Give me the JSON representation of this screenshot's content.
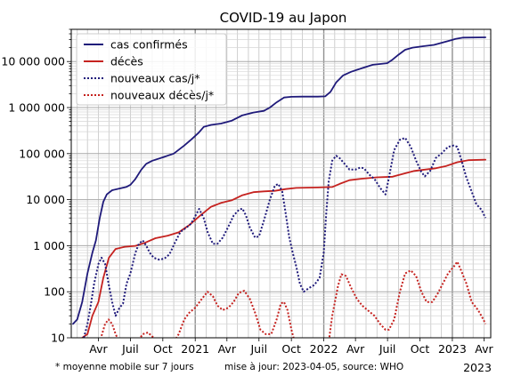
{
  "chart_data": {
    "type": "line",
    "title": "COVID-19 au Japon",
    "y_scale": "log",
    "ylim": [
      10,
      50000000
    ],
    "xlim": [
      "2020-01-15",
      "2023-04-20"
    ],
    "grid": true,
    "legend_position": "top-left",
    "y_ticks": [
      {
        "value": 10,
        "label": "10"
      },
      {
        "value": 100,
        "label": "100"
      },
      {
        "value": 1000,
        "label": "1 000"
      },
      {
        "value": 10000,
        "label": "10 000"
      },
      {
        "value": 100000,
        "label": "100 000"
      },
      {
        "value": 1000000,
        "label": "1 000 000"
      },
      {
        "value": 10000000,
        "label": "10 000 000"
      }
    ],
    "x_ticks": [
      {
        "date": "2020-04-01",
        "label": "Avr"
      },
      {
        "date": "2020-07-01",
        "label": "Juil"
      },
      {
        "date": "2020-10-01",
        "label": "Oct"
      },
      {
        "date": "2021-01-01",
        "label": "2021"
      },
      {
        "date": "2021-04-01",
        "label": "Avr"
      },
      {
        "date": "2021-07-01",
        "label": "Juil"
      },
      {
        "date": "2021-10-01",
        "label": "Oct"
      },
      {
        "date": "2022-01-01",
        "label": "2022"
      },
      {
        "date": "2022-04-01",
        "label": "Avr"
      },
      {
        "date": "2022-07-01",
        "label": "Juil"
      },
      {
        "date": "2022-10-01",
        "label": "Oct"
      },
      {
        "date": "2023-01-01",
        "label": "2023"
      },
      {
        "date": "2023-04-01",
        "label": "Avr"
      }
    ],
    "x_extra_label": "2023",
    "footnote_left": "* moyenne mobile sur 7 jours",
    "footnote_right": "mise à jour: 2023-04-05, source: WHO",
    "series": [
      {
        "name": "cas confirmés",
        "color": "#1f1a7a",
        "style": "solid",
        "points": [
          [
            "2020-01-20",
            20
          ],
          [
            "2020-02-01",
            25
          ],
          [
            "2020-02-15",
            60
          ],
          [
            "2020-03-01",
            250
          ],
          [
            "2020-03-15",
            700
          ],
          [
            "2020-03-25",
            1300
          ],
          [
            "2020-04-05",
            4000
          ],
          [
            "2020-04-15",
            9000
          ],
          [
            "2020-04-25",
            13000
          ],
          [
            "2020-05-10",
            16000
          ],
          [
            "2020-06-01",
            17500
          ],
          [
            "2020-06-20",
            19000
          ],
          [
            "2020-07-01",
            21000
          ],
          [
            "2020-07-15",
            28000
          ],
          [
            "2020-08-01",
            45000
          ],
          [
            "2020-08-15",
            60000
          ],
          [
            "2020-09-01",
            70000
          ],
          [
            "2020-10-01",
            83000
          ],
          [
            "2020-11-01",
            100000
          ],
          [
            "2020-12-01",
            150000
          ],
          [
            "2020-12-20",
            200000
          ],
          [
            "2021-01-10",
            280000
          ],
          [
            "2021-01-25",
            380000
          ],
          [
            "2021-02-15",
            420000
          ],
          [
            "2021-03-15",
            450000
          ],
          [
            "2021-04-15",
            520000
          ],
          [
            "2021-05-15",
            680000
          ],
          [
            "2021-06-15",
            780000
          ],
          [
            "2021-07-15",
            850000
          ],
          [
            "2021-08-01",
            1000000
          ],
          [
            "2021-08-20",
            1300000
          ],
          [
            "2021-09-10",
            1650000
          ],
          [
            "2021-10-01",
            1710000
          ],
          [
            "2021-11-01",
            1725000
          ],
          [
            "2021-12-15",
            1730000
          ],
          [
            "2022-01-05",
            1750000
          ],
          [
            "2022-01-20",
            2200000
          ],
          [
            "2022-02-05",
            3500000
          ],
          [
            "2022-02-25",
            5000000
          ],
          [
            "2022-03-20",
            6000000
          ],
          [
            "2022-04-20",
            7200000
          ],
          [
            "2022-05-20",
            8500000
          ],
          [
            "2022-06-30",
            9200000
          ],
          [
            "2022-07-15",
            11000000
          ],
          [
            "2022-08-01",
            14000000
          ],
          [
            "2022-08-20",
            18000000
          ],
          [
            "2022-09-10",
            20000000
          ],
          [
            "2022-10-10",
            21500000
          ],
          [
            "2022-11-10",
            23000000
          ],
          [
            "2022-12-10",
            26500000
          ],
          [
            "2023-01-10",
            31000000
          ],
          [
            "2023-02-01",
            33000000
          ],
          [
            "2023-04-05",
            33500000
          ]
        ]
      },
      {
        "name": "décès",
        "color": "#c5221f",
        "style": "solid",
        "points": [
          [
            "2020-02-15",
            10
          ],
          [
            "2020-03-01",
            12
          ],
          [
            "2020-03-15",
            30
          ],
          [
            "2020-04-01",
            60
          ],
          [
            "2020-04-15",
            200
          ],
          [
            "2020-05-01",
            550
          ],
          [
            "2020-05-20",
            850
          ],
          [
            "2020-06-15",
            950
          ],
          [
            "2020-07-15",
            990
          ],
          [
            "2020-08-10",
            1150
          ],
          [
            "2020-09-10",
            1450
          ],
          [
            "2020-10-15",
            1650
          ],
          [
            "2020-11-15",
            1950
          ],
          [
            "2020-12-15",
            2800
          ],
          [
            "2021-01-15",
            4500
          ],
          [
            "2021-02-15",
            7000
          ],
          [
            "2021-03-15",
            8500
          ],
          [
            "2021-04-15",
            9700
          ],
          [
            "2021-05-15",
            12500
          ],
          [
            "2021-06-15",
            14500
          ],
          [
            "2021-07-15",
            15100
          ],
          [
            "2021-08-15",
            15500
          ],
          [
            "2021-09-15",
            17000
          ],
          [
            "2021-10-15",
            18000
          ],
          [
            "2021-12-15",
            18400
          ],
          [
            "2022-01-25",
            18800
          ],
          [
            "2022-02-15",
            22000
          ],
          [
            "2022-03-15",
            26500
          ],
          [
            "2022-04-20",
            28500
          ],
          [
            "2022-06-01",
            30500
          ],
          [
            "2022-07-15",
            31500
          ],
          [
            "2022-08-15",
            36500
          ],
          [
            "2022-09-15",
            42000
          ],
          [
            "2022-10-15",
            45000
          ],
          [
            "2022-11-15",
            48000
          ],
          [
            "2022-12-15",
            54000
          ],
          [
            "2023-01-15",
            65000
          ],
          [
            "2023-02-15",
            72000
          ],
          [
            "2023-04-05",
            74000
          ]
        ]
      },
      {
        "name": "nouveaux cas/j*",
        "color": "#1f1a7a",
        "style": "dotted",
        "points": [
          [
            "2020-02-20",
            10
          ],
          [
            "2020-03-01",
            20
          ],
          [
            "2020-03-10",
            50
          ],
          [
            "2020-03-20",
            150
          ],
          [
            "2020-04-01",
            400
          ],
          [
            "2020-04-10",
            550
          ],
          [
            "2020-04-20",
            400
          ],
          [
            "2020-04-30",
            150
          ],
          [
            "2020-05-10",
            60
          ],
          [
            "2020-05-20",
            30
          ],
          [
            "2020-05-31",
            45
          ],
          [
            "2020-06-10",
            55
          ],
          [
            "2020-06-20",
            150
          ],
          [
            "2020-07-01",
            250
          ],
          [
            "2020-07-15",
            700
          ],
          [
            "2020-07-25",
            1100
          ],
          [
            "2020-08-05",
            1300
          ],
          [
            "2020-08-15",
            1000
          ],
          [
            "2020-08-25",
            700
          ],
          [
            "2020-09-05",
            550
          ],
          [
            "2020-09-20",
            500
          ],
          [
            "2020-10-05",
            520
          ],
          [
            "2020-10-20",
            650
          ],
          [
            "2020-11-05",
            1200
          ],
          [
            "2020-11-20",
            2000
          ],
          [
            "2020-12-05",
            2400
          ],
          [
            "2020-12-20",
            3000
          ],
          [
            "2021-01-05",
            5000
          ],
          [
            "2021-01-12",
            6300
          ],
          [
            "2021-01-25",
            4000
          ],
          [
            "2021-02-05",
            2000
          ],
          [
            "2021-02-20",
            1100
          ],
          [
            "2021-03-05",
            1100
          ],
          [
            "2021-03-20",
            1500
          ],
          [
            "2021-04-05",
            2600
          ],
          [
            "2021-04-20",
            4500
          ],
          [
            "2021-05-05",
            6000
          ],
          [
            "2021-05-15",
            6400
          ],
          [
            "2021-05-25",
            4500
          ],
          [
            "2021-06-05",
            2500
          ],
          [
            "2021-06-20",
            1500
          ],
          [
            "2021-07-01",
            1600
          ],
          [
            "2021-07-15",
            3500
          ],
          [
            "2021-08-01",
            10000
          ],
          [
            "2021-08-15",
            20000
          ],
          [
            "2021-08-25",
            22000
          ],
          [
            "2021-09-05",
            15000
          ],
          [
            "2021-09-15",
            5000
          ],
          [
            "2021-09-25",
            1500
          ],
          [
            "2021-10-05",
            700
          ],
          [
            "2021-10-15",
            350
          ],
          [
            "2021-10-25",
            150
          ],
          [
            "2021-11-05",
            100
          ],
          [
            "2021-11-20",
            120
          ],
          [
            "2021-12-05",
            140
          ],
          [
            "2021-12-20",
            200
          ],
          [
            "2022-01-01",
            700
          ],
          [
            "2022-01-08",
            5000
          ],
          [
            "2022-01-15",
            25000
          ],
          [
            "2022-01-25",
            70000
          ],
          [
            "2022-02-05",
            90000
          ],
          [
            "2022-02-15",
            80000
          ],
          [
            "2022-03-01",
            60000
          ],
          [
            "2022-03-15",
            45000
          ],
          [
            "2022-04-01",
            45000
          ],
          [
            "2022-04-15",
            50000
          ],
          [
            "2022-04-25",
            48000
          ],
          [
            "2022-05-10",
            35000
          ],
          [
            "2022-05-25",
            28000
          ],
          [
            "2022-06-10",
            18000
          ],
          [
            "2022-06-25",
            13000
          ],
          [
            "2022-07-05",
            30000
          ],
          [
            "2022-07-20",
            120000
          ],
          [
            "2022-08-05",
            200000
          ],
          [
            "2022-08-20",
            220000
          ],
          [
            "2022-09-05",
            140000
          ],
          [
            "2022-09-20",
            70000
          ],
          [
            "2022-10-05",
            40000
          ],
          [
            "2022-10-15",
            32000
          ],
          [
            "2022-10-30",
            42000
          ],
          [
            "2022-11-15",
            80000
          ],
          [
            "2022-12-01",
            100000
          ],
          [
            "2022-12-20",
            140000
          ],
          [
            "2023-01-05",
            150000
          ],
          [
            "2023-01-15",
            140000
          ],
          [
            "2023-01-25",
            80000
          ],
          [
            "2023-02-10",
            30000
          ],
          [
            "2023-02-25",
            15000
          ],
          [
            "2023-03-10",
            8000
          ],
          [
            "2023-03-25",
            6000
          ],
          [
            "2023-04-05",
            4000
          ]
        ]
      },
      {
        "name": "nouveaux décès/j*",
        "color": "#c5221f",
        "style": "dotted",
        "points": [
          [
            "2020-04-10",
            11
          ],
          [
            "2020-04-20",
            20
          ],
          [
            "2020-04-30",
            25
          ],
          [
            "2020-05-10",
            20
          ],
          [
            "2020-05-20",
            12
          ],
          [
            "2020-05-31",
            8
          ],
          [
            "2020-07-20",
            8
          ],
          [
            "2020-08-05",
            12
          ],
          [
            "2020-08-20",
            13
          ],
          [
            "2020-09-05",
            10
          ],
          [
            "2020-09-20",
            8
          ],
          [
            "2020-11-01",
            8
          ],
          [
            "2020-11-15",
            12
          ],
          [
            "2020-12-01",
            25
          ],
          [
            "2020-12-15",
            35
          ],
          [
            "2021-01-01",
            45
          ],
          [
            "2021-01-20",
            70
          ],
          [
            "2021-02-05",
            100
          ],
          [
            "2021-02-20",
            80
          ],
          [
            "2021-03-05",
            50
          ],
          [
            "2021-03-20",
            40
          ],
          [
            "2021-04-05",
            45
          ],
          [
            "2021-04-20",
            60
          ],
          [
            "2021-05-05",
            95
          ],
          [
            "2021-05-20",
            105
          ],
          [
            "2021-06-05",
            70
          ],
          [
            "2021-06-20",
            35
          ],
          [
            "2021-07-05",
            15
          ],
          [
            "2021-07-20",
            12
          ],
          [
            "2021-08-05",
            12
          ],
          [
            "2021-08-20",
            25
          ],
          [
            "2021-09-01",
            55
          ],
          [
            "2021-09-10",
            60
          ],
          [
            "2021-09-20",
            40
          ],
          [
            "2021-10-01",
            15
          ],
          [
            "2021-10-15",
            6
          ],
          [
            "2022-01-15",
            8
          ],
          [
            "2022-01-25",
            30
          ],
          [
            "2022-02-10",
            130
          ],
          [
            "2022-02-20",
            240
          ],
          [
            "2022-03-05",
            220
          ],
          [
            "2022-03-20",
            120
          ],
          [
            "2022-04-05",
            70
          ],
          [
            "2022-04-20",
            50
          ],
          [
            "2022-05-05",
            40
          ],
          [
            "2022-05-25",
            30
          ],
          [
            "2022-06-10",
            20
          ],
          [
            "2022-06-25",
            15
          ],
          [
            "2022-07-05",
            15
          ],
          [
            "2022-07-20",
            25
          ],
          [
            "2022-08-05",
            100
          ],
          [
            "2022-08-20",
            250
          ],
          [
            "2022-09-05",
            290
          ],
          [
            "2022-09-20",
            220
          ],
          [
            "2022-10-05",
            100
          ],
          [
            "2022-10-20",
            60
          ],
          [
            "2022-11-05",
            60
          ],
          [
            "2022-11-20",
            90
          ],
          [
            "2022-12-05",
            150
          ],
          [
            "2022-12-20",
            250
          ],
          [
            "2023-01-05",
            350
          ],
          [
            "2023-01-15",
            450
          ],
          [
            "2023-01-25",
            300
          ],
          [
            "2023-02-10",
            150
          ],
          [
            "2023-02-25",
            60
          ],
          [
            "2023-03-15",
            40
          ],
          [
            "2023-03-30",
            25
          ],
          [
            "2023-04-05",
            20
          ]
        ]
      }
    ]
  }
}
